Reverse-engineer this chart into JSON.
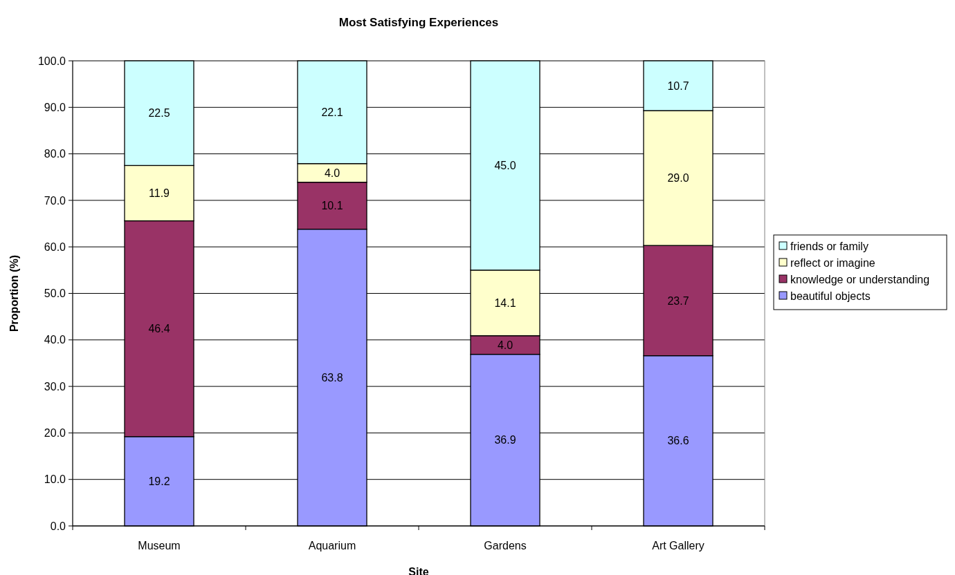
{
  "chart_data": {
    "type": "bar",
    "stacked": true,
    "title": "Most Satisfying Experiences",
    "xlabel": "Site",
    "ylabel": "Proportion (%)",
    "categories": [
      "Museum",
      "Aquarium",
      "Gardens",
      "Art Gallery"
    ],
    "series": [
      {
        "name": "beautiful objects",
        "color": "#9999ff",
        "values": [
          19.2,
          63.8,
          36.9,
          36.6
        ],
        "value_labels": [
          "19.2",
          "63.8",
          "36.9",
          "36.6"
        ]
      },
      {
        "name": "knowledge or understanding",
        "color": "#993366",
        "values": [
          46.4,
          10.1,
          4.0,
          23.7
        ],
        "value_labels": [
          "46.4",
          "10.1",
          "4.0",
          "23.7"
        ]
      },
      {
        "name": "reflect or imagine",
        "color": "#ffffcc",
        "values": [
          11.9,
          4.0,
          14.1,
          29.0
        ],
        "value_labels": [
          "11.9",
          "4.0",
          "14.1",
          "29.0"
        ]
      },
      {
        "name": "friends or family",
        "color": "#ccffff",
        "values": [
          22.5,
          22.1,
          45.0,
          10.7
        ],
        "value_labels": [
          "22.5",
          "22.1",
          "45.0",
          "10.7"
        ]
      }
    ],
    "ylim": [
      0,
      100
    ],
    "yticks": [
      {
        "value": 0,
        "label": "0.0"
      },
      {
        "value": 10,
        "label": "10.0"
      },
      {
        "value": 20,
        "label": "20.0"
      },
      {
        "value": 30,
        "label": "30.0"
      },
      {
        "value": 40,
        "label": "40.0"
      },
      {
        "value": 50,
        "label": "50.0"
      },
      {
        "value": 60,
        "label": "60.0"
      },
      {
        "value": 70,
        "label": "70.0"
      },
      {
        "value": 80,
        "label": "80.0"
      },
      {
        "value": 90,
        "label": "90.0"
      },
      {
        "value": 100,
        "label": "100.0"
      }
    ],
    "grid": "y",
    "legend": "right"
  }
}
